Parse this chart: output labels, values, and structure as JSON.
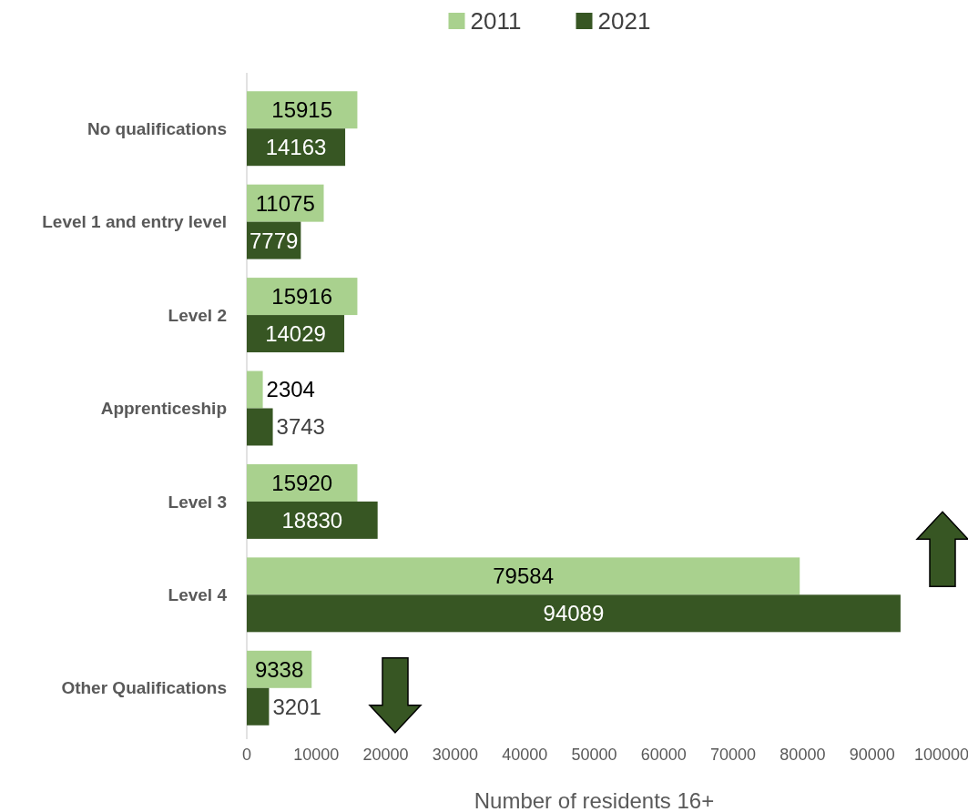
{
  "chart_data": {
    "type": "bar",
    "orientation": "horizontal",
    "xlabel": "Number of residents 16+",
    "categories": [
      "No qualifications",
      "Level 1 and entry level",
      "Level 2",
      "Apprenticeship",
      "Level 3",
      "Level 4",
      "Other Qualifications"
    ],
    "series": [
      {
        "name": "2011",
        "color": "#a9d18e",
        "values": [
          15915,
          11075,
          15916,
          2304,
          15920,
          79584,
          9338
        ]
      },
      {
        "name": "2021",
        "color": "#375623",
        "values": [
          14163,
          7779,
          14029,
          3743,
          18830,
          94089,
          3201
        ]
      }
    ],
    "xlim": [
      0,
      100000
    ],
    "xticks": [
      0,
      10000,
      20000,
      30000,
      40000,
      50000,
      60000,
      70000,
      80000,
      90000,
      100000
    ],
    "data_labels": true,
    "grid": false,
    "legend": "top"
  }
}
